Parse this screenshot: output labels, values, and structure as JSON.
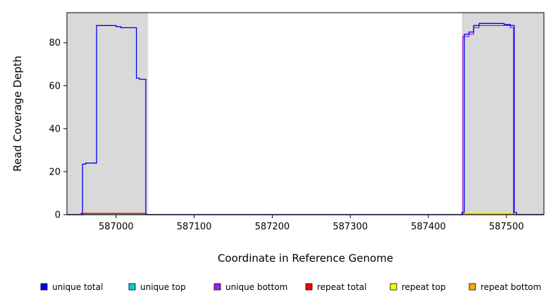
{
  "chart_data": {
    "type": "line",
    "title": "",
    "xlabel": "Coordinate in Reference Genome",
    "ylabel": "Read Coverage Depth",
    "xlim": [
      586937,
      587548
    ],
    "ylim": [
      0,
      94
    ],
    "xticks": [
      587000,
      587100,
      587200,
      587300,
      587400,
      587500
    ],
    "yticks": [
      0,
      20,
      40,
      60,
      80
    ],
    "grid": false,
    "legend_position": "bottom",
    "background_shading": {
      "color": "#d9d9d9",
      "regions": [
        [
          586937,
          587041
        ],
        [
          587443,
          587548
        ]
      ]
    },
    "series": [
      {
        "name": "unique total",
        "color": "#0000ee",
        "points": [
          [
            586937,
            0
          ],
          [
            586957,
            0
          ],
          [
            586957,
            23.5
          ],
          [
            586961,
            23.5
          ],
          [
            586961,
            24
          ],
          [
            586975,
            24
          ],
          [
            586975,
            88
          ],
          [
            587000,
            88
          ],
          [
            587000,
            87.5
          ],
          [
            587006,
            87.5
          ],
          [
            587006,
            87
          ],
          [
            587026,
            87
          ],
          [
            587026,
            63.5
          ],
          [
            587030,
            63.5
          ],
          [
            587030,
            63
          ],
          [
            587038,
            63
          ],
          [
            587038,
            0
          ],
          [
            587443,
            0
          ],
          [
            587443,
            1
          ],
          [
            587446,
            1
          ],
          [
            587446,
            84
          ],
          [
            587452,
            84
          ],
          [
            587452,
            85
          ],
          [
            587458,
            85
          ],
          [
            587458,
            88
          ],
          [
            587465,
            88
          ],
          [
            587465,
            89
          ],
          [
            587497,
            89
          ],
          [
            587497,
            88.5
          ],
          [
            587505,
            88.5
          ],
          [
            587505,
            88
          ],
          [
            587510,
            88
          ],
          [
            587510,
            1
          ],
          [
            587513,
            1
          ],
          [
            587513,
            0
          ],
          [
            587548,
            0
          ]
        ]
      },
      {
        "name": "unique top",
        "color": "#00cdcd",
        "points": [
          [
            586937,
            0
          ],
          [
            587548,
            0
          ]
        ]
      },
      {
        "name": "unique bottom",
        "color": "#a020f0",
        "points": [
          [
            586937,
            0
          ],
          [
            587444,
            0
          ],
          [
            587444,
            83
          ],
          [
            587452,
            83
          ],
          [
            587452,
            84
          ],
          [
            587458,
            84
          ],
          [
            587458,
            87
          ],
          [
            587465,
            87
          ],
          [
            587465,
            88
          ],
          [
            587505,
            88
          ],
          [
            587505,
            87
          ],
          [
            587509,
            87
          ],
          [
            587509,
            0
          ],
          [
            587548,
            0
          ]
        ]
      },
      {
        "name": "repeat total",
        "color": "#ff0000",
        "points": [
          [
            586937,
            0
          ],
          [
            586955,
            0
          ],
          [
            586955,
            0.6
          ],
          [
            587038,
            0.6
          ],
          [
            587038,
            0
          ],
          [
            587548,
            0
          ]
        ]
      },
      {
        "name": "repeat top",
        "color": "#ffff00",
        "points": [
          [
            586937,
            0
          ],
          [
            587444,
            0
          ],
          [
            587444,
            0.8
          ],
          [
            587509,
            0.8
          ],
          [
            587509,
            0
          ],
          [
            587548,
            0
          ]
        ]
      },
      {
        "name": "repeat bottom",
        "color": "#ffa500",
        "points": [
          [
            586937,
            0
          ],
          [
            587444,
            0
          ],
          [
            587444,
            0.4
          ],
          [
            587509,
            0.4
          ],
          [
            587509,
            0
          ],
          [
            587548,
            0
          ]
        ]
      }
    ]
  }
}
